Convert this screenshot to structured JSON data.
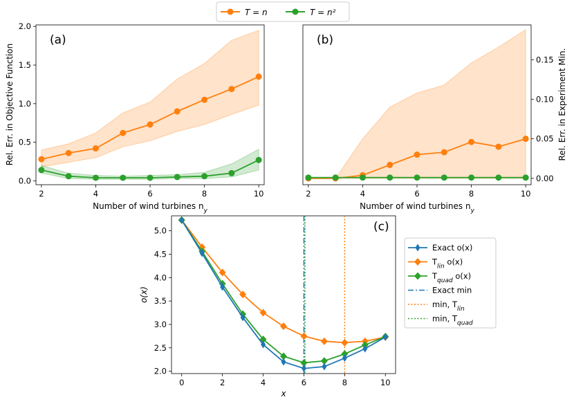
{
  "figure": {
    "legend_top": [
      {
        "label": "T = n",
        "color": "#ff7f0e"
      },
      {
        "label": "T = n²",
        "color": "#2ca02c"
      }
    ]
  },
  "chart_data": [
    {
      "type": "line",
      "panel_label": "(a)",
      "xlabel": "Number of wind turbines n_y",
      "ylabel": "Rel. Err. in Objective Function",
      "x": [
        2,
        3,
        4,
        5,
        6,
        7,
        8,
        9,
        10
      ],
      "xlim": [
        1.8,
        10.2
      ],
      "ylim": [
        -0.05,
        2.02
      ],
      "xticks": [
        2,
        4,
        6,
        8,
        10
      ],
      "yticks": [
        0.0,
        0.5,
        1.0,
        1.5,
        2.0
      ],
      "ytick_labels": [
        "0.0",
        "0.5",
        "1.0",
        "1.5",
        "2.0"
      ],
      "series": [
        {
          "name": "T = n",
          "color": "#ff7f0e",
          "values": [
            0.28,
            0.36,
            0.42,
            0.62,
            0.73,
            0.9,
            1.05,
            1.19,
            1.35
          ],
          "band_lower": [
            0.18,
            0.24,
            0.3,
            0.44,
            0.52,
            0.64,
            0.73,
            0.86,
            0.98
          ],
          "band_upper": [
            0.4,
            0.48,
            0.62,
            0.88,
            1.02,
            1.32,
            1.52,
            1.82,
            1.95
          ]
        },
        {
          "name": "T = n²",
          "color": "#2ca02c",
          "values": [
            0.14,
            0.06,
            0.04,
            0.04,
            0.04,
            0.05,
            0.06,
            0.1,
            0.27
          ],
          "band_lower": [
            0.1,
            0.03,
            0.02,
            0.02,
            0.02,
            0.03,
            0.03,
            0.05,
            0.14
          ],
          "band_upper": [
            0.2,
            0.1,
            0.07,
            0.06,
            0.07,
            0.08,
            0.11,
            0.22,
            0.41
          ]
        }
      ]
    },
    {
      "type": "line",
      "panel_label": "(b)",
      "xlabel": "Number of wind turbines n_y",
      "ylabel": "Rel. Err. in Experiment Min.",
      "x": [
        2,
        3,
        4,
        5,
        6,
        7,
        8,
        9,
        10
      ],
      "xlim": [
        1.8,
        10.2
      ],
      "ylim": [
        -0.008,
        0.194
      ],
      "xticks": [
        2,
        4,
        6,
        8,
        10
      ],
      "yticks": [
        0.0,
        0.05,
        0.1,
        0.15
      ],
      "ytick_labels": [
        "0.00",
        "0.05",
        "0.10",
        "0.15"
      ],
      "series": [
        {
          "name": "T = n",
          "color": "#ff7f0e",
          "values": [
            0.0,
            0.0,
            0.004,
            0.017,
            0.03,
            0.033,
            0.046,
            0.04,
            0.05
          ],
          "band_lower": [
            0,
            0,
            0,
            0,
            0,
            0,
            0,
            0,
            0
          ],
          "band_upper": [
            0.0,
            0.0,
            0.05,
            0.09,
            0.108,
            0.118,
            0.146,
            0.166,
            0.188
          ]
        },
        {
          "name": "T = n²",
          "color": "#2ca02c",
          "values": [
            0.001,
            0.001,
            0.001,
            0.001,
            0.001,
            0.001,
            0.001,
            0.001,
            0.001
          ]
        }
      ]
    },
    {
      "type": "line",
      "panel_label": "(c)",
      "xlabel": "x",
      "ylabel": "o(x)",
      "x": [
        0,
        1,
        2,
        3,
        4,
        5,
        6,
        7,
        8,
        9,
        10
      ],
      "xlim": [
        -0.5,
        10.5
      ],
      "ylim": [
        1.95,
        5.32
      ],
      "xticks": [
        0,
        2,
        4,
        6,
        8,
        10
      ],
      "yticks": [
        2.0,
        2.5,
        3.0,
        3.5,
        4.0,
        4.5,
        5.0
      ],
      "ytick_labels": [
        "2.0",
        "2.5",
        "3.0",
        "3.5",
        "4.0",
        "4.5",
        "5.0"
      ],
      "series": [
        {
          "name": "Exact o(x)",
          "color": "#1f77b4",
          "marker": "thin-diamond",
          "values": [
            5.23,
            4.52,
            3.8,
            3.15,
            2.57,
            2.2,
            2.06,
            2.1,
            2.28,
            2.48,
            2.73
          ]
        },
        {
          "name": "T_lin o(x)",
          "color": "#ff7f0e",
          "marker": "diamond",
          "values": [
            5.23,
            4.65,
            4.11,
            3.64,
            3.25,
            2.96,
            2.75,
            2.64,
            2.61,
            2.64,
            2.73
          ]
        },
        {
          "name": "T_quad o(x)",
          "color": "#2ca02c",
          "marker": "diamond",
          "values": [
            5.23,
            4.56,
            3.87,
            3.22,
            2.68,
            2.32,
            2.18,
            2.22,
            2.37,
            2.56,
            2.74
          ]
        }
      ],
      "vlines": [
        {
          "name": "Exact min",
          "x": 6,
          "color": "#1f77b4",
          "style": "dashdot"
        },
        {
          "name": "min, T_lin",
          "x": 8,
          "color": "#ff7f0e",
          "style": "dotted"
        },
        {
          "name": "min, T_quad",
          "x": 6,
          "color": "#2ca02c",
          "style": "dotted"
        }
      ],
      "legend": [
        {
          "label": "Exact o(x)"
        },
        {
          "label": "T_lin o(x)"
        },
        {
          "label": "T_quad o(x)"
        },
        {
          "label": "Exact min"
        },
        {
          "label": "min, T_lin"
        },
        {
          "label": "min, T_quad"
        }
      ]
    }
  ]
}
